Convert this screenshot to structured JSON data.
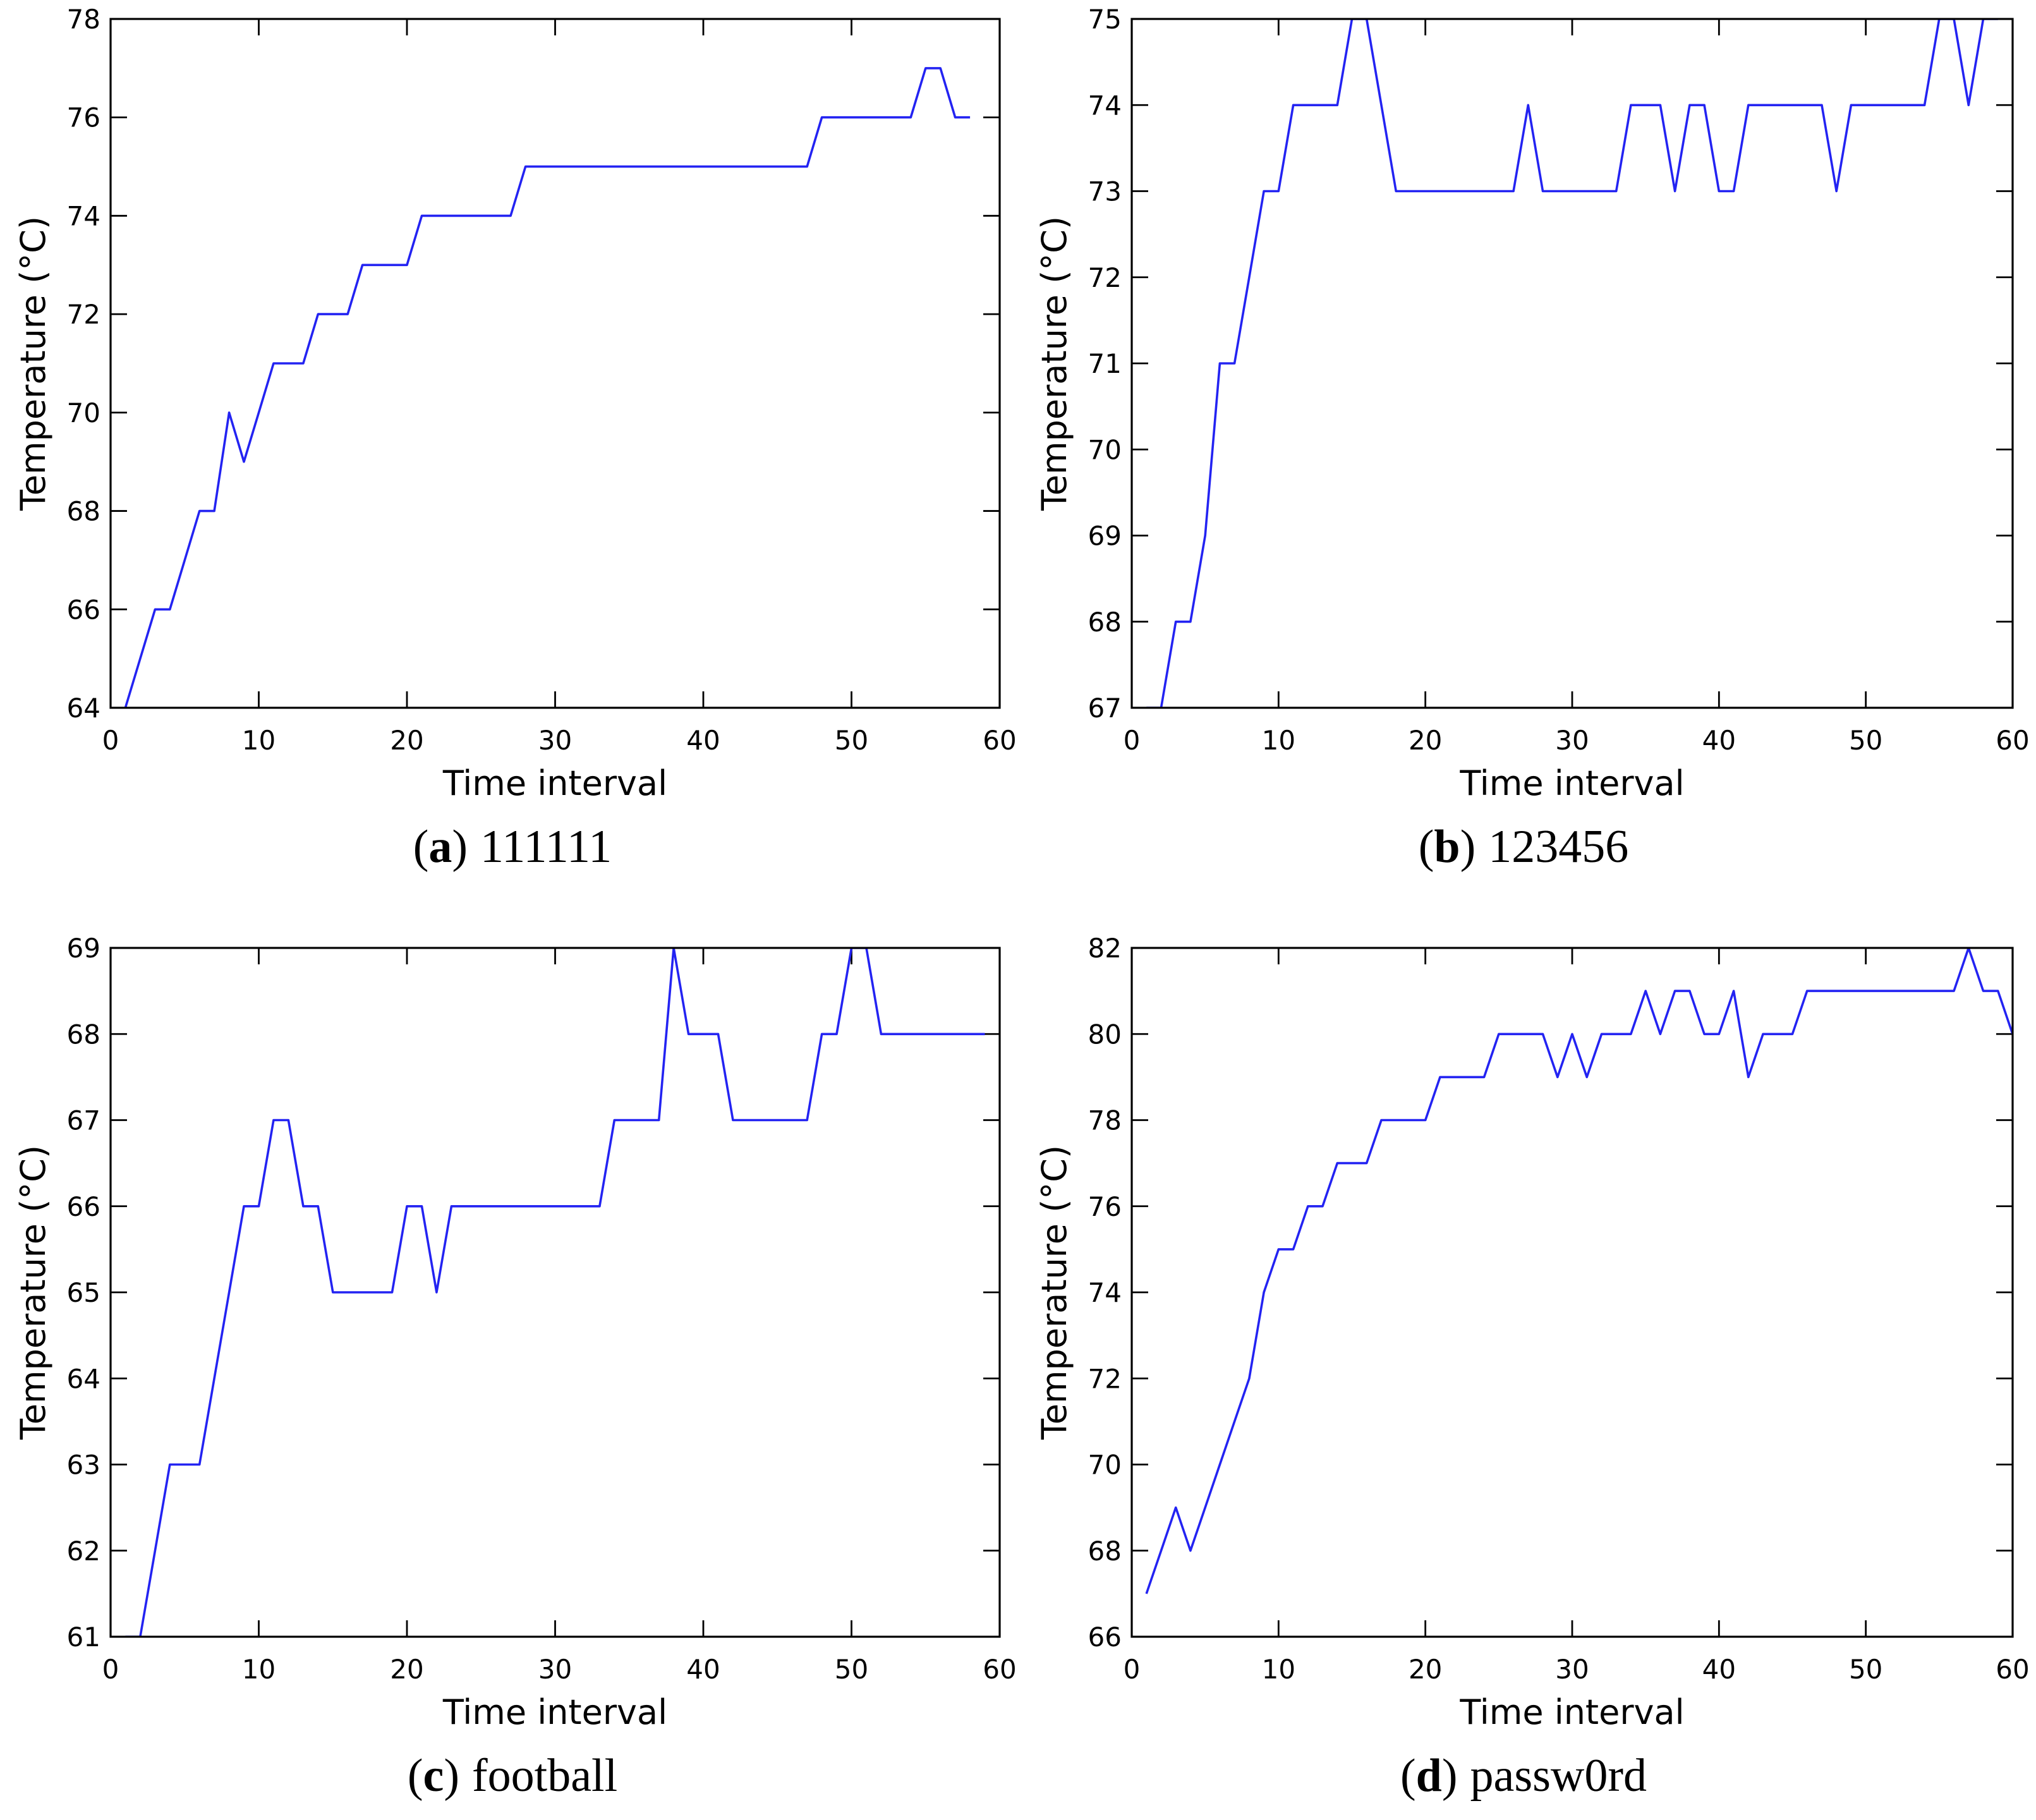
{
  "page": {
    "background": "#ffffff",
    "axis_color": "#000000",
    "line_color": "#2323f2"
  },
  "chart_data": [
    {
      "id": "a",
      "type": "line",
      "caption": {
        "open": "(",
        "letter": "a",
        "close": ")",
        "text": "111111"
      },
      "xlabel": "Time interval",
      "ylabel": "Temperature (°C)",
      "xlim": [
        0,
        60
      ],
      "ylim": [
        64,
        78
      ],
      "xticks": [
        0,
        10,
        20,
        30,
        40,
        50,
        60
      ],
      "yticks": [
        64,
        66,
        68,
        70,
        72,
        74,
        76,
        78
      ],
      "grid": false,
      "legend": null,
      "x_start": 1,
      "values": [
        64,
        65,
        66,
        66,
        67,
        68,
        68,
        70,
        69,
        70,
        71,
        71,
        71,
        72,
        72,
        72,
        73,
        73,
        73,
        73,
        74,
        74,
        74,
        74,
        74,
        74,
        74,
        75,
        75,
        75,
        75,
        75,
        75,
        75,
        75,
        75,
        75,
        75,
        75,
        75,
        75,
        75,
        75,
        75,
        75,
        75,
        75,
        76,
        76,
        76,
        76,
        76,
        76,
        76,
        77,
        77,
        76,
        76
      ]
    },
    {
      "id": "b",
      "type": "line",
      "caption": {
        "open": "(",
        "letter": "b",
        "close": ")",
        "text": "123456"
      },
      "xlabel": "Time interval",
      "ylabel": "Temperature (°C)",
      "xlim": [
        0,
        60
      ],
      "ylim": [
        67,
        75
      ],
      "xticks": [
        0,
        10,
        20,
        30,
        40,
        50,
        60
      ],
      "yticks": [
        67,
        68,
        69,
        70,
        71,
        72,
        73,
        74,
        75
      ],
      "grid": false,
      "legend": null,
      "x_start": 1,
      "values": [
        67,
        67,
        68,
        68,
        69,
        71,
        71,
        72,
        73,
        73,
        74,
        74,
        74,
        74,
        75,
        75,
        74,
        73,
        73,
        73,
        73,
        73,
        73,
        73,
        73,
        73,
        74,
        73,
        73,
        73,
        73,
        73,
        73,
        74,
        74,
        74,
        73,
        74,
        74,
        73,
        73,
        74,
        74,
        74,
        74,
        74,
        74,
        73,
        74,
        74,
        74,
        74,
        74,
        74,
        75,
        75,
        74,
        75,
        75
      ]
    },
    {
      "id": "c",
      "type": "line",
      "caption": {
        "open": "(",
        "letter": "c",
        "close": ")",
        "text": "football"
      },
      "xlabel": "Time interval",
      "ylabel": "Temperature (°C)",
      "xlim": [
        0,
        60
      ],
      "ylim": [
        61,
        69
      ],
      "xticks": [
        0,
        10,
        20,
        30,
        40,
        50,
        60
      ],
      "yticks": [
        61,
        62,
        63,
        64,
        65,
        66,
        67,
        68,
        69
      ],
      "grid": false,
      "legend": null,
      "x_start": 1,
      "values": [
        61,
        61,
        62,
        63,
        63,
        63,
        64,
        65,
        66,
        66,
        67,
        67,
        66,
        66,
        65,
        65,
        65,
        65,
        65,
        66,
        66,
        65,
        66,
        66,
        66,
        66,
        66,
        66,
        66,
        66,
        66,
        66,
        66,
        67,
        67,
        67,
        67,
        69,
        68,
        68,
        68,
        67,
        67,
        67,
        67,
        67,
        67,
        68,
        68,
        69,
        69,
        68,
        68,
        68,
        68,
        68,
        68,
        68,
        68
      ]
    },
    {
      "id": "d",
      "type": "line",
      "caption": {
        "open": "(",
        "letter": "d",
        "close": ")",
        "text": "passw0rd"
      },
      "xlabel": "Time interval",
      "ylabel": "Temperature (°C)",
      "xlim": [
        0,
        60
      ],
      "ylim": [
        66,
        82
      ],
      "xticks": [
        0,
        10,
        20,
        30,
        40,
        50,
        60
      ],
      "yticks": [
        66,
        68,
        70,
        72,
        74,
        76,
        78,
        80,
        82
      ],
      "grid": false,
      "legend": null,
      "x_start": 1,
      "values": [
        67,
        68,
        69,
        68,
        69,
        70,
        71,
        72,
        74,
        75,
        75,
        76,
        76,
        77,
        77,
        77,
        78,
        78,
        78,
        78,
        79,
        79,
        79,
        79,
        80,
        80,
        80,
        80,
        79,
        80,
        79,
        80,
        80,
        80,
        81,
        80,
        81,
        81,
        80,
        80,
        81,
        79,
        80,
        80,
        80,
        81,
        81,
        81,
        81,
        81,
        81,
        81,
        81,
        81,
        81,
        81,
        82,
        81,
        81,
        80
      ]
    }
  ]
}
